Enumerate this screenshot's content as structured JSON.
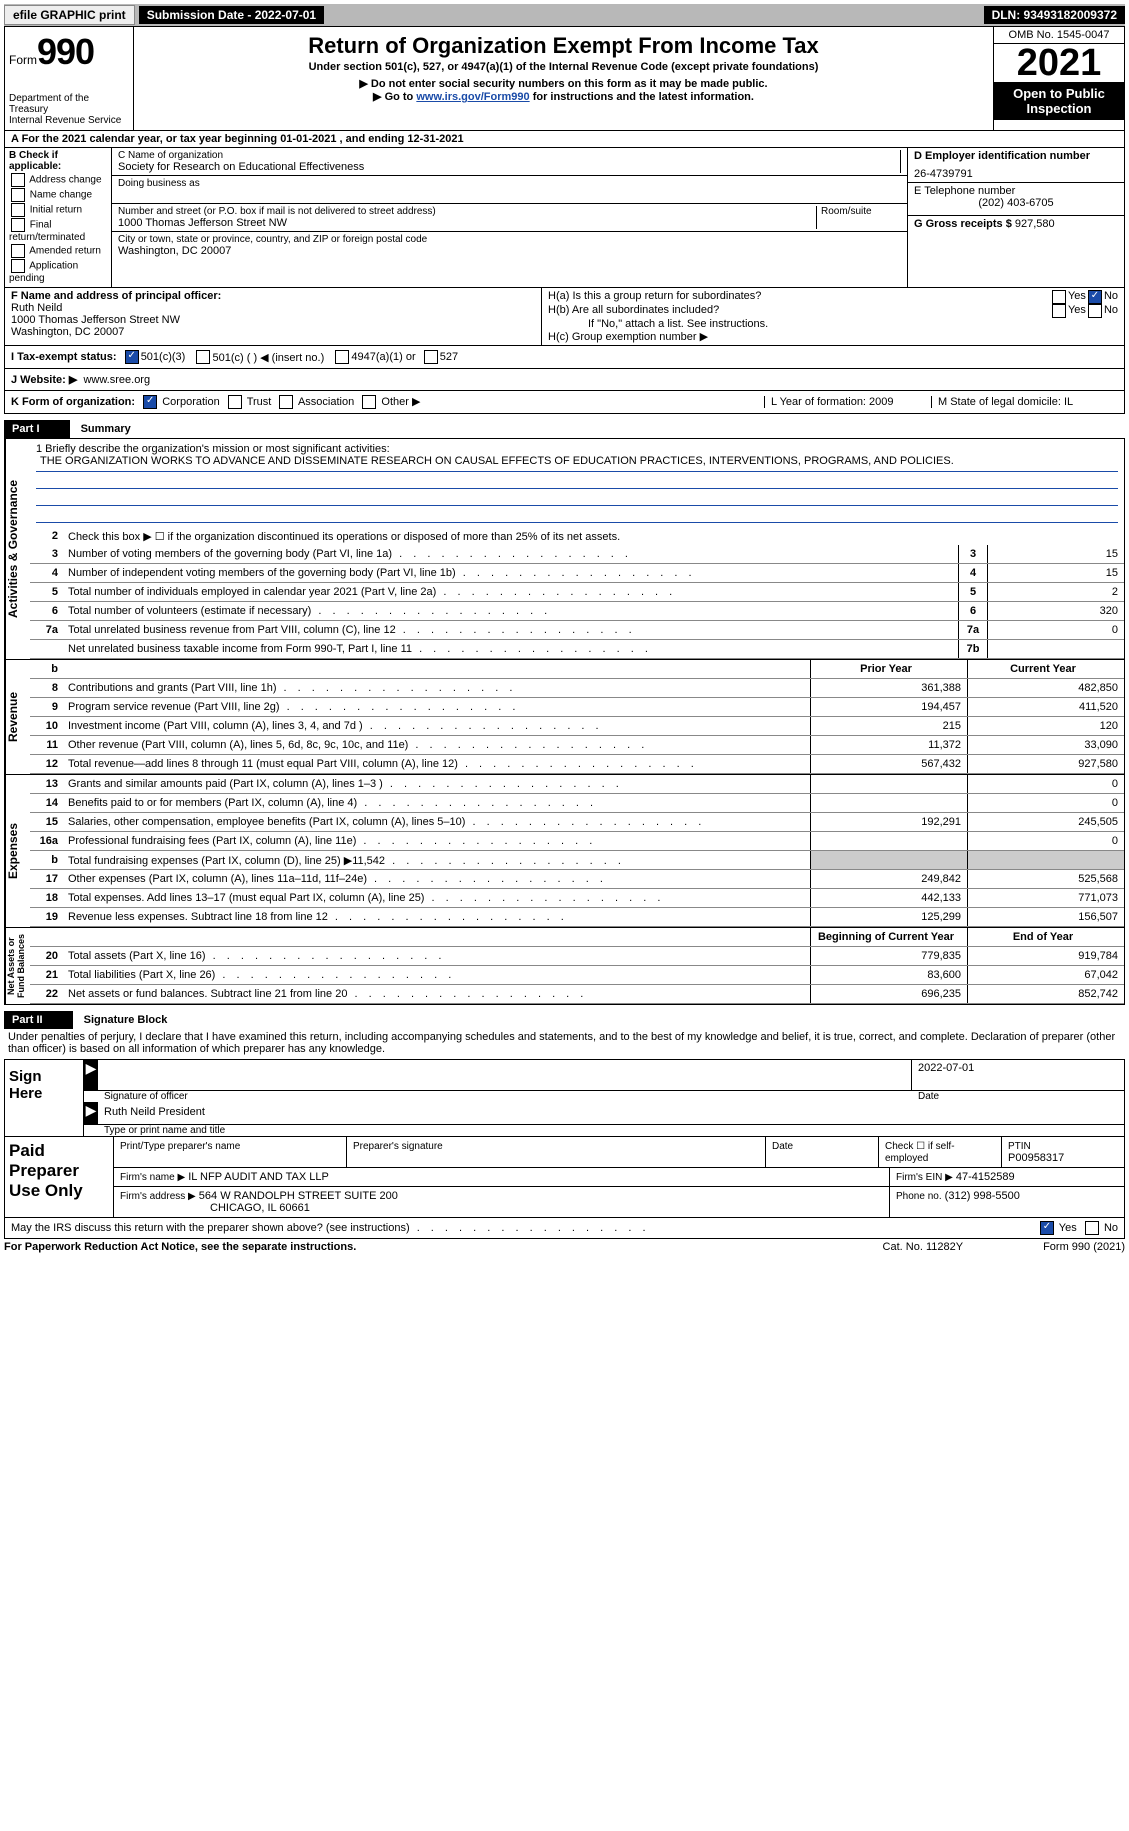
{
  "topbar": {
    "efile": "efile GRAPHIC print",
    "submission_label": "Submission Date - 2022-07-01",
    "dln": "DLN: 93493182009372"
  },
  "header": {
    "form_prefix": "Form",
    "form_number": "990",
    "dept": "Department of the Treasury\nInternal Revenue Service",
    "title": "Return of Organization Exempt From Income Tax",
    "subtitle": "Under section 501(c), 527, or 4947(a)(1) of the Internal Revenue Code (except private foundations)",
    "note1": "▶ Do not enter social security numbers on this form as it may be made public.",
    "note2_pre": "▶ Go to ",
    "note2_link": "www.irs.gov/Form990",
    "note2_post": " for instructions and the latest information.",
    "omb": "OMB No. 1545-0047",
    "year": "2021",
    "open": "Open to Public\nInspection"
  },
  "row_a": "A For the 2021 calendar year, or tax year beginning 01-01-2021    , and ending 12-31-2021",
  "box_b": {
    "label": "B Check if applicable:",
    "items": [
      "Address change",
      "Name change",
      "Initial return",
      "Final return/terminated",
      "Amended return",
      "Application pending"
    ]
  },
  "box_c": {
    "name_label": "C Name of organization",
    "name": "Society for Research on Educational Effectiveness",
    "dba_label": "Doing business as",
    "addr_label": "Number and street (or P.O. box if mail is not delivered to street address)",
    "room_label": "Room/suite",
    "addr": "1000 Thomas Jefferson Street NW",
    "city_label": "City or town, state or province, country, and ZIP or foreign postal code",
    "city": "Washington, DC  20007"
  },
  "box_d": {
    "ein_label": "D Employer identification number",
    "ein": "26-4739791",
    "tel_label": "E Telephone number",
    "tel": "(202) 403-6705",
    "gross_label": "G Gross receipts $",
    "gross": "927,580"
  },
  "box_f": {
    "label": "F  Name and address of principal officer:",
    "name": "Ruth Neild",
    "addr1": "1000 Thomas Jefferson Street NW",
    "addr2": "Washington, DC  20007"
  },
  "box_h": {
    "ha": "H(a)  Is this a group return for subordinates?",
    "hb": "H(b)  Are all subordinates included?",
    "hb_note": "If \"No,\" attach a list. See instructions.",
    "hc": "H(c)  Group exemption number ▶",
    "yes": "Yes",
    "no": "No"
  },
  "row_i": {
    "label": "I   Tax-exempt status:",
    "o1": "501(c)(3)",
    "o2": "501(c) (  ) ◀ (insert no.)",
    "o3": "4947(a)(1) or",
    "o4": "527"
  },
  "row_j": {
    "label": "J   Website: ▶",
    "val": "www.sree.org"
  },
  "row_k": {
    "label": "K Form of organization:",
    "o1": "Corporation",
    "o2": "Trust",
    "o3": "Association",
    "o4": "Other ▶"
  },
  "row_l": {
    "l": "L Year of formation: 2009",
    "m": "M State of legal domicile: IL"
  },
  "part1": {
    "header": "Part I",
    "title": "Summary",
    "line1_label": "1   Briefly describe the organization's mission or most significant activities:",
    "mission": "THE ORGANIZATION WORKS TO ADVANCE AND DISSEMINATE RESEARCH ON CAUSAL EFFECTS OF EDUCATION PRACTICES, INTERVENTIONS, PROGRAMS, AND POLICIES.",
    "line2": "Check this box ▶ ☐  if the organization discontinued its operations or disposed of more than 25% of its net assets.",
    "vtab_ag": "Activities & Governance",
    "vtab_rev": "Revenue",
    "vtab_exp": "Expenses",
    "vtab_net": "Net Assets or\nFund Balances",
    "rows_ag": [
      {
        "n": "3",
        "d": "Number of voting members of the governing body (Part VI, line 1a)",
        "b": "3",
        "v": "15"
      },
      {
        "n": "4",
        "d": "Number of independent voting members of the governing body (Part VI, line 1b)",
        "b": "4",
        "v": "15"
      },
      {
        "n": "5",
        "d": "Total number of individuals employed in calendar year 2021 (Part V, line 2a)",
        "b": "5",
        "v": "2"
      },
      {
        "n": "6",
        "d": "Total number of volunteers (estimate if necessary)",
        "b": "6",
        "v": "320"
      },
      {
        "n": "7a",
        "d": "Total unrelated business revenue from Part VIII, column (C), line 12",
        "b": "7a",
        "v": "0"
      },
      {
        "n": "",
        "d": "Net unrelated business taxable income from Form 990-T, Part I, line 11",
        "b": "7b",
        "v": ""
      }
    ],
    "hdr_prior": "Prior Year",
    "hdr_curr": "Current Year",
    "rows_rev": [
      {
        "n": "8",
        "d": "Contributions and grants (Part VIII, line 1h)",
        "p": "361,388",
        "c": "482,850"
      },
      {
        "n": "9",
        "d": "Program service revenue (Part VIII, line 2g)",
        "p": "194,457",
        "c": "411,520"
      },
      {
        "n": "10",
        "d": "Investment income (Part VIII, column (A), lines 3, 4, and 7d )",
        "p": "215",
        "c": "120"
      },
      {
        "n": "11",
        "d": "Other revenue (Part VIII, column (A), lines 5, 6d, 8c, 9c, 10c, and 11e)",
        "p": "11,372",
        "c": "33,090"
      },
      {
        "n": "12",
        "d": "Total revenue—add lines 8 through 11 (must equal Part VIII, column (A), line 12)",
        "p": "567,432",
        "c": "927,580"
      }
    ],
    "rows_exp": [
      {
        "n": "13",
        "d": "Grants and similar amounts paid (Part IX, column (A), lines 1–3 )",
        "p": "",
        "c": "0"
      },
      {
        "n": "14",
        "d": "Benefits paid to or for members (Part IX, column (A), line 4)",
        "p": "",
        "c": "0"
      },
      {
        "n": "15",
        "d": "Salaries, other compensation, employee benefits (Part IX, column (A), lines 5–10)",
        "p": "192,291",
        "c": "245,505"
      },
      {
        "n": "16a",
        "d": "Professional fundraising fees (Part IX, column (A), line 11e)",
        "p": "",
        "c": "0"
      },
      {
        "n": "b",
        "d": "Total fundraising expenses (Part IX, column (D), line 25) ▶11,542",
        "p": "shade",
        "c": "shade"
      },
      {
        "n": "17",
        "d": "Other expenses (Part IX, column (A), lines 11a–11d, 11f–24e)",
        "p": "249,842",
        "c": "525,568"
      },
      {
        "n": "18",
        "d": "Total expenses. Add lines 13–17 (must equal Part IX, column (A), line 25)",
        "p": "442,133",
        "c": "771,073"
      },
      {
        "n": "19",
        "d": "Revenue less expenses. Subtract line 18 from line 12",
        "p": "125,299",
        "c": "156,507"
      }
    ],
    "hdr_boy": "Beginning of Current Year",
    "hdr_eoy": "End of Year",
    "rows_net": [
      {
        "n": "20",
        "d": "Total assets (Part X, line 16)",
        "p": "779,835",
        "c": "919,784"
      },
      {
        "n": "21",
        "d": "Total liabilities (Part X, line 26)",
        "p": "83,600",
        "c": "67,042"
      },
      {
        "n": "22",
        "d": "Net assets or fund balances. Subtract line 21 from line 20",
        "p": "696,235",
        "c": "852,742"
      }
    ]
  },
  "part2": {
    "header": "Part II",
    "title": "Signature Block",
    "perjury": "Under penalties of perjury, I declare that I have examined this return, including accompanying schedules and statements, and to the best of my knowledge and belief, it is true, correct, and complete. Declaration of preparer (other than officer) is based on all information of which preparer has any knowledge.",
    "sign_here": "Sign\nHere",
    "sig_officer": "Signature of officer",
    "sig_date": "2022-07-01",
    "date_label": "Date",
    "officer_name": "Ruth Neild  President",
    "type_name": "Type or print name and title",
    "paid_prep": "Paid\nPreparer\nUse Only",
    "prep_name_label": "Print/Type preparer's name",
    "prep_sig_label": "Preparer's signature",
    "check_if": "Check ☐ if self-employed",
    "ptin_label": "PTIN",
    "ptin": "P00958317",
    "firm_name_label": "Firm's name    ▶",
    "firm_name": "IL NFP AUDIT AND TAX LLP",
    "firm_ein_label": "Firm's EIN ▶",
    "firm_ein": "47-4152589",
    "firm_addr_label": "Firm's address ▶",
    "firm_addr1": "564 W RANDOLPH STREET SUITE 200",
    "firm_addr2": "CHICAGO, IL  60661",
    "phone_label": "Phone no.",
    "phone": "(312) 998-5500",
    "may_irs": "May the IRS discuss this return with the preparer shown above? (see instructions)",
    "yes": "Yes",
    "no": "No"
  },
  "footer": {
    "left": "For Paperwork Reduction Act Notice, see the separate instructions.",
    "mid": "Cat. No. 11282Y",
    "right": "Form 990 (2021)"
  }
}
